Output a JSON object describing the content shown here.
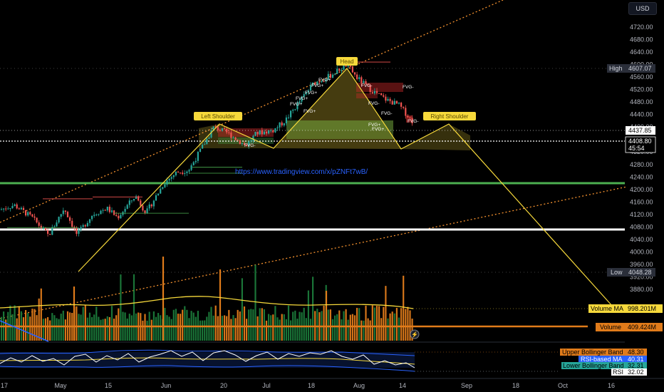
{
  "currency": "USD",
  "url_text": "https://www.tradingview.com/x/pZNFt7wB/",
  "pattern_labels": {
    "left_shoulder": "Left Shoulder",
    "head": "Head",
    "right_shoulder": "Right Shoulder"
  },
  "fvg_labels": [
    "FVG+",
    "FVG+",
    "FVG+",
    "FVG+",
    "FVG+",
    "FVG+",
    "FVG-",
    "FVG-",
    "FVG-",
    "FVG+",
    "FVG+",
    "FVG-",
    "FVG-",
    "FVG-"
  ],
  "price_tags": {
    "high_label": "High",
    "high_value": "4607.07",
    "low_label": "Low",
    "low_value": "4048.28",
    "last_close": "4437.85",
    "current": "4408.80",
    "countdown": "45:54"
  },
  "volume_tags": {
    "ma_label": "Volume MA",
    "ma_value": "998.201M",
    "vol_label": "Volume",
    "vol_value": "409.424M"
  },
  "rsi_tags": {
    "upper_label": "Upper Bollinger Band",
    "upper_value": "48.30",
    "ma_label": "RSI-based MA",
    "ma_value": "40.31",
    "lower_label": "Lower Bollinger Band",
    "lower_value": "32.31",
    "rsi_label": "RSI",
    "rsi_value": "32.02"
  },
  "colors": {
    "up": "#26a69a",
    "down": "#ef5350",
    "vol_up": "#1b7a3a",
    "vol_down": "#e07b1a",
    "pattern": "#f7d93b",
    "green_line": "#4caf50",
    "white_line": "#ffffff",
    "trend": "#f5922f",
    "rsi_band": "#2962ff"
  },
  "chart_data": {
    "type": "candlestick",
    "symbol_currency": "USD",
    "price_axis": {
      "ticks": [
        4720,
        4680,
        4640,
        4600,
        4560,
        4520,
        4480,
        4440,
        4400,
        4360,
        4320,
        4280,
        4240,
        4200,
        4160,
        4120,
        4080,
        4040,
        4000,
        3960,
        3920,
        3880
      ],
      "labels": [
        "4720.00",
        "4680.00",
        "4640.00",
        "4600.00",
        "4560.00",
        "4520.00",
        "4480.00",
        "4440.00",
        "4400.00",
        "4360.00",
        "4320.00",
        "4280.00",
        "4240.00",
        "4200.00",
        "4160.00",
        "4120.00",
        "4080.00",
        "4040.00",
        "4000.00",
        "3960.00",
        "3920.00",
        "3880.00"
      ]
    },
    "time_axis": {
      "labels": [
        "17",
        "May",
        "15",
        "Jun",
        "20",
        "Jul",
        "18",
        "Aug",
        "14",
        "Sep",
        "18",
        "Oct",
        "16"
      ]
    },
    "high": 4607.07,
    "low": 4048.28,
    "last_close": 4437.85,
    "current_price": 4408.8,
    "horizontal_levels": [
      {
        "price": 4290,
        "color": "green"
      },
      {
        "price": 4167,
        "color": "white"
      }
    ],
    "head_and_shoulders": [
      {
        "point": "start",
        "price": 4048
      },
      {
        "point": "left_shoulder",
        "price": 4466
      },
      {
        "point": "neckline_1",
        "price": 4383
      },
      {
        "point": "head",
        "price": 4607
      },
      {
        "point": "neckline_2",
        "price": 4382
      },
      {
        "point": "right_shoulder",
        "price": 4466
      },
      {
        "point": "target",
        "price": 3955
      }
    ],
    "indicators": {
      "volume_ma": "998.201M",
      "volume": "409.424M",
      "rsi": 32.02,
      "rsi_ma": 40.31,
      "bb_upper": 48.3,
      "bb_lower": 32.31
    }
  }
}
